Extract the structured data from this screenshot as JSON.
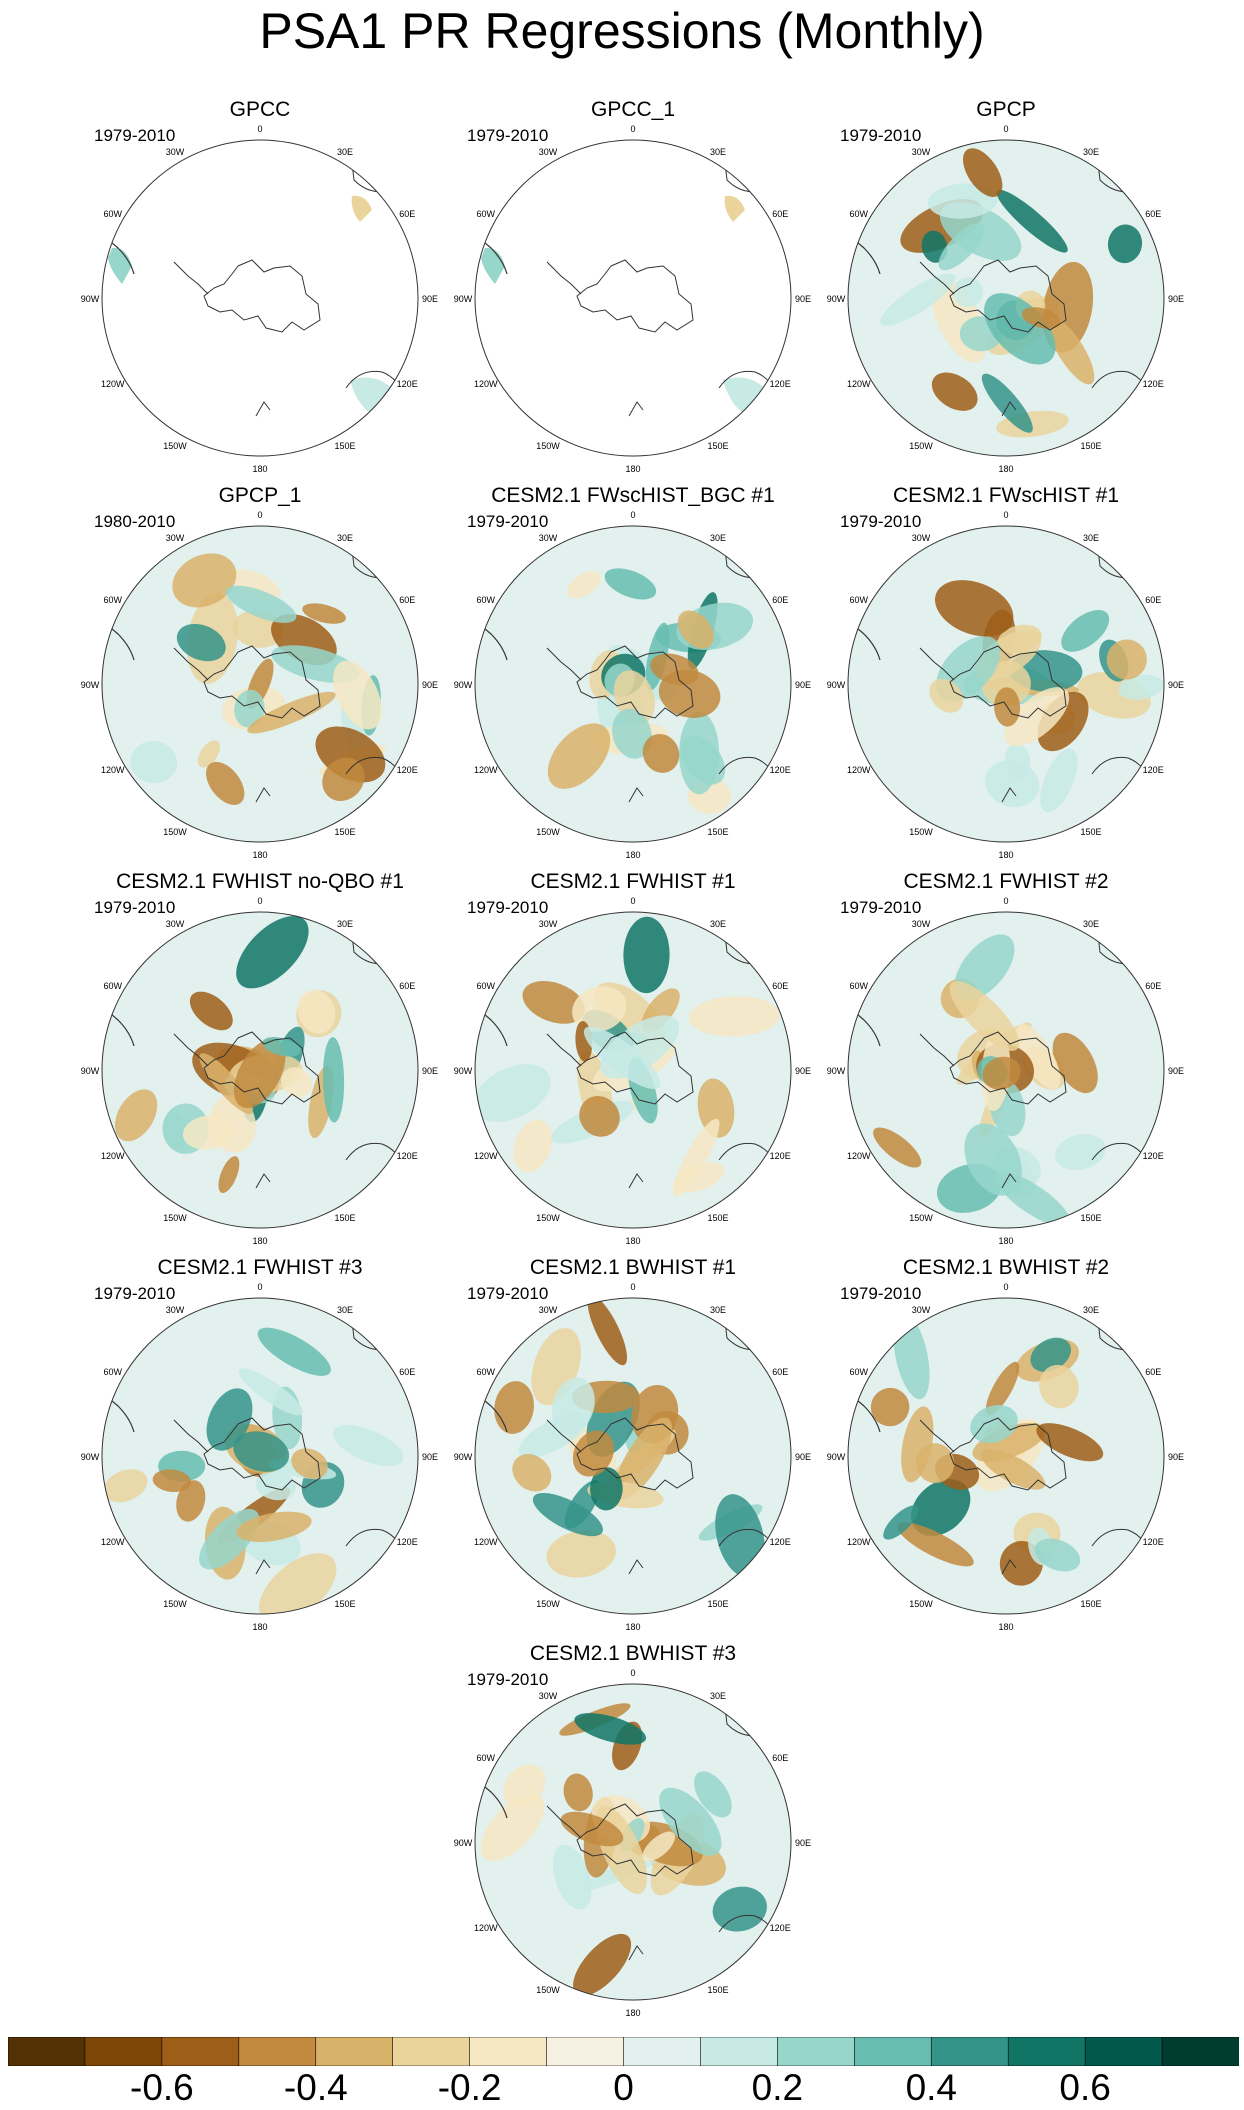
{
  "title": "PSA1 PR Regressions (Monthly)",
  "lon_labels": [
    "0",
    "30E",
    "60E",
    "90E",
    "120E",
    "150E",
    "180",
    "150W",
    "120W",
    "90W",
    "60W",
    "30W"
  ],
  "panels": [
    {
      "title": "GPCC",
      "period": "1979-2010",
      "coverage": "land"
    },
    {
      "title": "GPCC_1",
      "period": "1979-2010",
      "coverage": "land"
    },
    {
      "title": "GPCP",
      "period": "1979-2010",
      "coverage": "global"
    },
    {
      "title": "GPCP_1",
      "period": "1980-2010",
      "coverage": "global"
    },
    {
      "title": "CESM2.1 FWscHIST_BGC #1",
      "period": "1979-2010",
      "coverage": "global"
    },
    {
      "title": "CESM2.1 FWscHIST #1",
      "period": "1979-2010",
      "coverage": "global"
    },
    {
      "title": "CESM2.1 FWHIST no-QBO #1",
      "period": "1979-2010",
      "coverage": "global"
    },
    {
      "title": "CESM2.1 FWHIST #1",
      "period": "1979-2010",
      "coverage": "global"
    },
    {
      "title": "CESM2.1 FWHIST #2",
      "period": "1979-2010",
      "coverage": "global"
    },
    {
      "title": "CESM2.1 FWHIST #3",
      "period": "1979-2010",
      "coverage": "global"
    },
    {
      "title": "CESM2.1 BWHIST #1",
      "period": "1979-2010",
      "coverage": "global"
    },
    {
      "title": "CESM2.1 BWHIST #2",
      "period": "1979-2010",
      "coverage": "global"
    },
    {
      "title": "CESM2.1 BWHIST #3",
      "period": "1979-2010",
      "coverage": "global"
    }
  ],
  "colorbar": {
    "levels": [
      -0.7,
      -0.6,
      -0.5,
      -0.4,
      -0.3,
      -0.2,
      -0.1,
      0,
      0.1,
      0.2,
      0.3,
      0.4,
      0.5,
      0.6,
      0.7
    ],
    "colors": [
      "#543005",
      "#7e4709",
      "#9e5e17",
      "#c18a3e",
      "#d9b26a",
      "#ead49c",
      "#f6e8c3",
      "#f5f0e1",
      "#e2f0ee",
      "#c7eae5",
      "#97d6cb",
      "#66bdb0",
      "#359489",
      "#117566",
      "#01594c",
      "#003c30"
    ],
    "labels": [
      "-0.6",
      "-0.4",
      "-0.2",
      "0",
      "0.2",
      "0.4",
      "0.6"
    ],
    "label_values": [
      -0.6,
      -0.4,
      -0.2,
      0,
      0.2,
      0.4,
      0.6
    ]
  }
}
